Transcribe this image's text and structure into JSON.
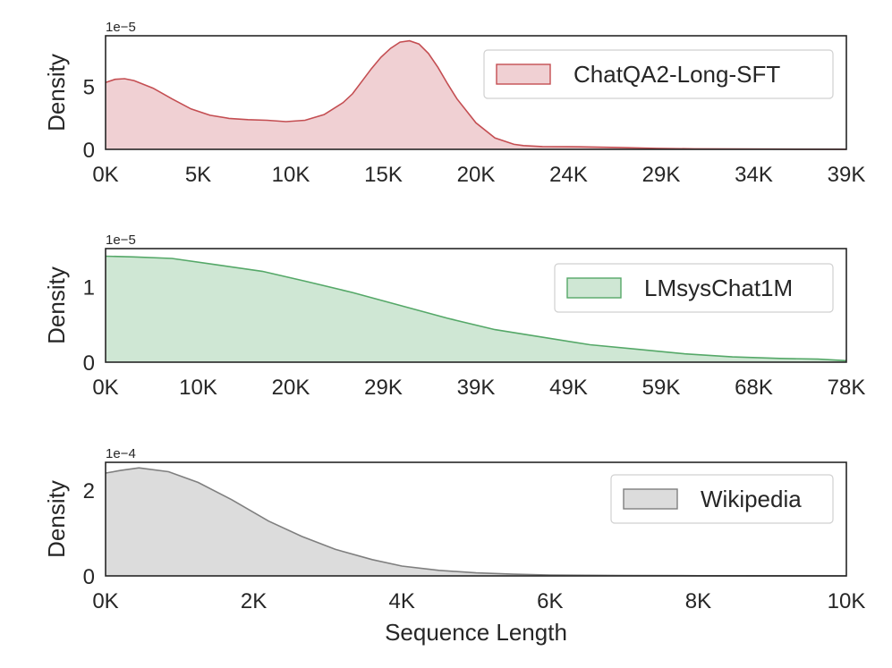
{
  "figure": {
    "xlabel": "Sequence Length"
  },
  "chart_data": [
    {
      "type": "area",
      "title": "",
      "series_name": "ChatQA2-Long-SFT",
      "color_fill": "#f0d0d3",
      "color_line": "#c44e52",
      "ylabel": "Density",
      "y_offset_label": "1e−5",
      "xlim": [
        0,
        39000
      ],
      "ylim": [
        0,
        9
      ],
      "x_ticks": [
        "0K",
        "5K",
        "10K",
        "15K",
        "20K",
        "24K",
        "29K",
        "34K",
        "39K"
      ],
      "x_tick_values": [
        0,
        4875,
        9750,
        14625,
        19500,
        24375,
        29250,
        34125,
        39000
      ],
      "y_ticks": [
        "0",
        "5"
      ],
      "y_tick_values": [
        0,
        5
      ],
      "legend": "top-right",
      "x": [
        0,
        500,
        1000,
        1500,
        2500,
        3500,
        4500,
        5500,
        6500,
        7500,
        8500,
        9500,
        10500,
        11500,
        12500,
        13000,
        13500,
        14000,
        14500,
        15000,
        15500,
        16000,
        16500,
        17000,
        17500,
        18000,
        18500,
        19500,
        20500,
        21500,
        22000,
        23000,
        25000,
        27000,
        29000,
        31000,
        35000,
        39000
      ],
      "y": [
        5.3,
        5.55,
        5.6,
        5.45,
        4.85,
        4.0,
        3.2,
        2.7,
        2.45,
        2.35,
        2.3,
        2.2,
        2.3,
        2.75,
        3.7,
        4.4,
        5.4,
        6.4,
        7.3,
        8.0,
        8.5,
        8.6,
        8.35,
        7.6,
        6.5,
        5.2,
        4.0,
        2.1,
        0.9,
        0.4,
        0.3,
        0.22,
        0.2,
        0.15,
        0.08,
        0.04,
        0.02,
        0.01
      ]
    },
    {
      "type": "area",
      "title": "",
      "series_name": "LMsysChat1M",
      "color_fill": "#cfe7d4",
      "color_line": "#55a868",
      "ylabel": "Density",
      "y_offset_label": "1e−5",
      "xlim": [
        0,
        78000
      ],
      "ylim": [
        0,
        1.5
      ],
      "x_ticks": [
        "0K",
        "10K",
        "20K",
        "29K",
        "39K",
        "49K",
        "59K",
        "68K",
        "78K"
      ],
      "x_tick_values": [
        0,
        9750,
        19500,
        29250,
        39000,
        48750,
        58500,
        68250,
        78000
      ],
      "y_ticks": [
        "0",
        "1"
      ],
      "y_tick_values": [
        0,
        1
      ],
      "legend": "center-right",
      "x": [
        0,
        3000,
        7000,
        12000,
        16500,
        21000,
        26000,
        31000,
        36000,
        41000,
        46000,
        51000,
        56000,
        61000,
        66000,
        71000,
        75000,
        78000
      ],
      "y": [
        1.4,
        1.39,
        1.37,
        1.28,
        1.2,
        1.07,
        0.92,
        0.75,
        0.58,
        0.43,
        0.33,
        0.23,
        0.17,
        0.11,
        0.07,
        0.05,
        0.04,
        0.02
      ]
    },
    {
      "type": "area",
      "title": "",
      "series_name": "Wikipedia",
      "color_fill": "#dcdcdc",
      "color_line": "#7f7f7f",
      "ylabel": "Density",
      "y_offset_label": "1e−4",
      "xlim": [
        0,
        10000
      ],
      "ylim": [
        0,
        2.65
      ],
      "x_ticks": [
        "0K",
        "2K",
        "4K",
        "6K",
        "8K",
        "10K"
      ],
      "x_tick_values": [
        0,
        2000,
        4000,
        6000,
        8000,
        10000
      ],
      "y_ticks": [
        "0",
        "2"
      ],
      "y_tick_values": [
        0,
        2
      ],
      "legend": "center-right",
      "x": [
        0,
        200,
        450,
        850,
        1250,
        1700,
        2200,
        2650,
        3100,
        3600,
        4000,
        4500,
        5000,
        5500,
        6000,
        7000,
        8000,
        10000
      ],
      "y": [
        2.4,
        2.46,
        2.52,
        2.43,
        2.18,
        1.78,
        1.28,
        0.92,
        0.62,
        0.38,
        0.23,
        0.13,
        0.07,
        0.04,
        0.02,
        0.01,
        0.005,
        0.0
      ]
    }
  ]
}
